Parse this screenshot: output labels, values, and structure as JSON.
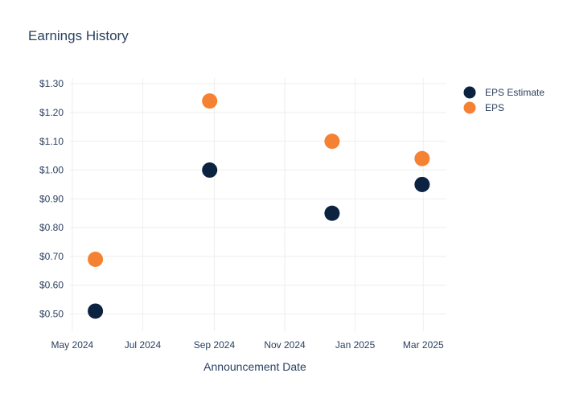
{
  "chart_data": {
    "type": "scatter",
    "title": "Earnings History",
    "xlabel": "Announcement Date",
    "ylabel": "",
    "x_ticks": [
      "May 2024",
      "Jul 2024",
      "Sep 2024",
      "Nov 2024",
      "Jan 2025",
      "Mar 2025"
    ],
    "y_ticks": [
      "$0.50",
      "$0.60",
      "$0.70",
      "$0.80",
      "$0.90",
      "$1.00",
      "$1.10",
      "$1.20",
      "$1.30"
    ],
    "ylim": [
      0.44,
      1.32
    ],
    "xlim": [
      "2024-04-29",
      "2025-03-21"
    ],
    "grid": true,
    "legend_position": "top-right",
    "series": [
      {
        "name": "EPS Estimate",
        "color": "#0b2340",
        "points": [
          {
            "x": "2024-05-21",
            "y": 0.51
          },
          {
            "x": "2024-08-28",
            "y": 1.0
          },
          {
            "x": "2024-12-12",
            "y": 0.85
          },
          {
            "x": "2025-02-28",
            "y": 0.95
          }
        ]
      },
      {
        "name": "EPS",
        "color": "#f58232",
        "points": [
          {
            "x": "2024-05-21",
            "y": 0.69
          },
          {
            "x": "2024-08-28",
            "y": 1.24
          },
          {
            "x": "2024-12-12",
            "y": 1.1
          },
          {
            "x": "2025-02-28",
            "y": 1.04
          }
        ]
      }
    ]
  }
}
